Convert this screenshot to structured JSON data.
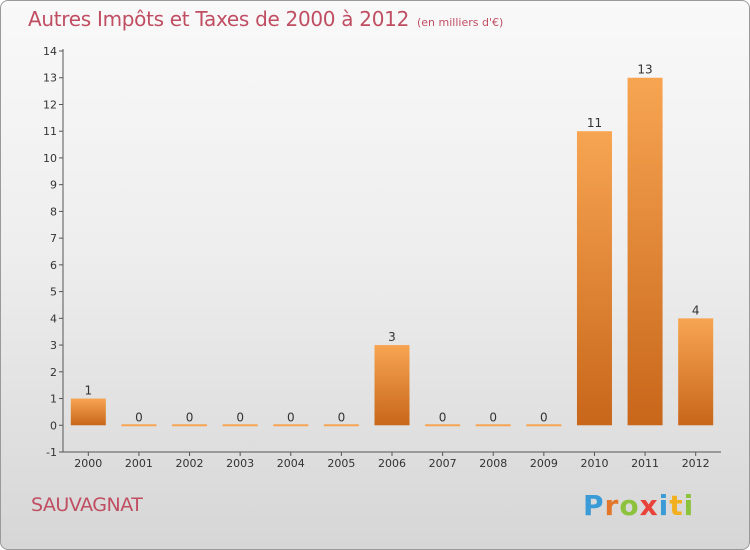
{
  "title": "Autres Impôts et Taxes de 2000 à 2012",
  "unit_label": "(en milliers d'€)",
  "town": "SAUVAGNAT",
  "logo": {
    "letters": [
      "P",
      "r",
      "o",
      "x",
      "i",
      "t",
      "i"
    ],
    "colors": [
      "#3a9bd6",
      "#e2762b",
      "#8cc23c",
      "#e8433b",
      "#3a9bd6",
      "#f2b01e",
      "#8cc23c"
    ]
  },
  "colors": {
    "title": "#c04e63",
    "bar_light": "#f7a552",
    "bar_dark": "#c8661a",
    "label": "#333333"
  },
  "chart_data": {
    "type": "bar",
    "categories": [
      "2000",
      "2001",
      "2002",
      "2003",
      "2004",
      "2005",
      "2006",
      "2007",
      "2008",
      "2009",
      "2010",
      "2011",
      "2012"
    ],
    "values": [
      1,
      0,
      0,
      0,
      0,
      0,
      3,
      0,
      0,
      0,
      11,
      13,
      4
    ],
    "data_labels": [
      "1",
      "0",
      "0",
      "0",
      "0",
      "0",
      "3",
      "0",
      "0",
      "0",
      "11",
      "13",
      "4"
    ],
    "yticks": [
      "-1",
      "0",
      "1",
      "2",
      "3",
      "4",
      "5",
      "6",
      "7",
      "8",
      "9",
      "10",
      "11",
      "12",
      "13",
      "14"
    ],
    "ylim": [
      -1,
      14
    ],
    "title": "Autres Impôts et Taxes de 2000 à 2012",
    "grid": false
  }
}
